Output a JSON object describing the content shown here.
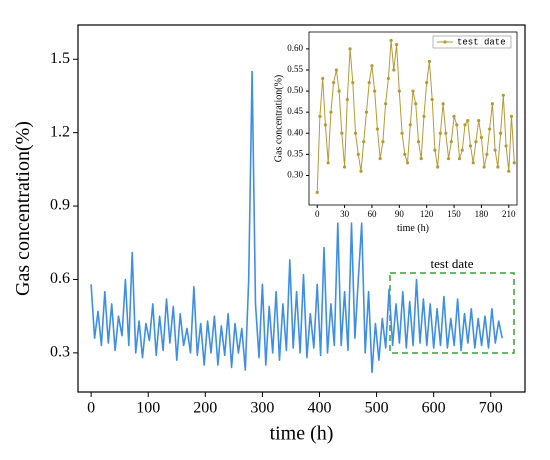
{
  "chart_data": [
    {
      "type": "line",
      "x_label": "time (h)",
      "y_label": "Gas concentration(%)",
      "annotation": "test date",
      "xlim": [
        -23,
        760
      ],
      "ylim": [
        0.14,
        1.64
      ],
      "xticks": [
        0,
        100,
        200,
        300,
        400,
        500,
        600,
        700
      ],
      "yticks": [
        0.3,
        0.6,
        0.9,
        1.2,
        1.5
      ],
      "grid": false,
      "x": [
        0,
        6,
        12,
        18,
        24,
        30,
        36,
        42,
        48,
        54,
        60,
        66,
        72,
        78,
        84,
        90,
        96,
        102,
        108,
        114,
        120,
        126,
        132,
        138,
        144,
        150,
        156,
        162,
        168,
        174,
        180,
        186,
        192,
        198,
        204,
        210,
        216,
        222,
        228,
        234,
        240,
        246,
        252,
        258,
        264,
        270,
        276,
        282,
        288,
        294,
        300,
        306,
        312,
        318,
        324,
        330,
        336,
        342,
        348,
        354,
        360,
        366,
        372,
        378,
        384,
        390,
        396,
        402,
        408,
        414,
        420,
        426,
        432,
        438,
        444,
        450,
        456,
        462,
        468,
        474,
        480,
        486,
        492,
        498,
        504,
        510,
        516,
        522,
        528,
        534,
        540,
        546,
        552,
        558,
        564,
        570,
        576,
        582,
        588,
        594,
        600,
        606,
        612,
        618,
        624,
        630,
        636,
        642,
        648,
        654,
        660,
        666,
        672,
        678,
        684,
        690,
        696,
        702,
        708,
        714,
        720
      ],
      "series": [
        {
          "color": "#3f8ee6",
          "values": [
            0.58,
            0.36,
            0.47,
            0.33,
            0.55,
            0.34,
            0.5,
            0.31,
            0.45,
            0.37,
            0.6,
            0.33,
            0.71,
            0.3,
            0.43,
            0.28,
            0.42,
            0.35,
            0.5,
            0.29,
            0.45,
            0.31,
            0.52,
            0.34,
            0.49,
            0.27,
            0.46,
            0.33,
            0.4,
            0.3,
            0.57,
            0.29,
            0.42,
            0.25,
            0.43,
            0.3,
            0.45,
            0.25,
            0.41,
            0.29,
            0.46,
            0.24,
            0.42,
            0.3,
            0.4,
            0.23,
            0.6,
            1.45,
            0.5,
            0.28,
            0.58,
            0.25,
            0.49,
            0.3,
            0.55,
            0.27,
            0.5,
            0.31,
            0.68,
            0.32,
            0.55,
            0.3,
            0.62,
            0.28,
            0.46,
            0.32,
            0.58,
            0.29,
            0.73,
            0.3,
            0.5,
            0.33,
            0.83,
            0.33,
            0.55,
            0.31,
            0.83,
            0.36,
            0.6,
            0.83,
            0.3,
            0.55,
            0.22,
            0.42,
            0.27,
            0.44,
            0.32,
            0.56,
            0.33,
            0.5,
            0.34,
            0.55,
            0.32,
            0.51,
            0.33,
            0.6,
            0.34,
            0.52,
            0.33,
            0.5,
            0.32,
            0.48,
            0.33,
            0.53,
            0.32,
            0.44,
            0.33,
            0.52,
            0.31,
            0.46,
            0.34,
            0.48,
            0.32,
            0.44,
            0.33,
            0.45,
            0.32,
            0.48,
            0.34,
            0.43,
            0.36
          ]
        }
      ]
    },
    {
      "type": "line",
      "x_label": "time (h)",
      "y_label": "Gas concentration(%)",
      "xlim": [
        -9,
        219
      ],
      "ylim": [
        0.23,
        0.64
      ],
      "xticks": [
        0,
        30,
        60,
        90,
        120,
        150,
        180,
        210
      ],
      "yticks": [
        {
          "value": 0.3,
          "label": "0.30"
        },
        {
          "value": 0.35,
          "label": "0.35"
        },
        {
          "value": 0.4,
          "label": "0.40"
        },
        {
          "value": 0.45,
          "label": "0.45"
        },
        {
          "value": 0.5,
          "label": "0.50"
        },
        {
          "value": 0.55,
          "label": "0.55"
        },
        {
          "value": 0.6,
          "label": "0.60"
        }
      ],
      "grid": false,
      "legend": "top-right",
      "markers": true,
      "x": [
        0,
        3,
        6,
        9,
        12,
        15,
        18,
        21,
        24,
        27,
        30,
        33,
        36,
        39,
        42,
        45,
        48,
        51,
        54,
        57,
        60,
        63,
        66,
        69,
        72,
        75,
        78,
        81,
        84,
        87,
        90,
        93,
        96,
        99,
        102,
        105,
        108,
        111,
        114,
        117,
        120,
        123,
        126,
        129,
        132,
        135,
        138,
        141,
        144,
        147,
        150,
        153,
        156,
        159,
        162,
        165,
        168,
        171,
        174,
        177,
        180,
        183,
        186,
        189,
        192,
        195,
        198,
        201,
        204,
        207,
        210,
        213,
        216
      ],
      "series": [
        {
          "name": "test date",
          "color": "#b59a36",
          "values": [
            0.26,
            0.44,
            0.53,
            0.42,
            0.33,
            0.45,
            0.52,
            0.55,
            0.5,
            0.4,
            0.32,
            0.48,
            0.6,
            0.52,
            0.4,
            0.35,
            0.31,
            0.38,
            0.45,
            0.52,
            0.56,
            0.5,
            0.41,
            0.34,
            0.38,
            0.47,
            0.53,
            0.62,
            0.55,
            0.61,
            0.5,
            0.4,
            0.35,
            0.33,
            0.42,
            0.5,
            0.47,
            0.38,
            0.34,
            0.44,
            0.52,
            0.57,
            0.48,
            0.36,
            0.32,
            0.4,
            0.47,
            0.4,
            0.34,
            0.38,
            0.44,
            0.42,
            0.34,
            0.36,
            0.42,
            0.43,
            0.37,
            0.33,
            0.38,
            0.43,
            0.39,
            0.32,
            0.35,
            0.41,
            0.47,
            0.36,
            0.32,
            0.4,
            0.49,
            0.37,
            0.31,
            0.44,
            0.33
          ]
        }
      ]
    }
  ]
}
